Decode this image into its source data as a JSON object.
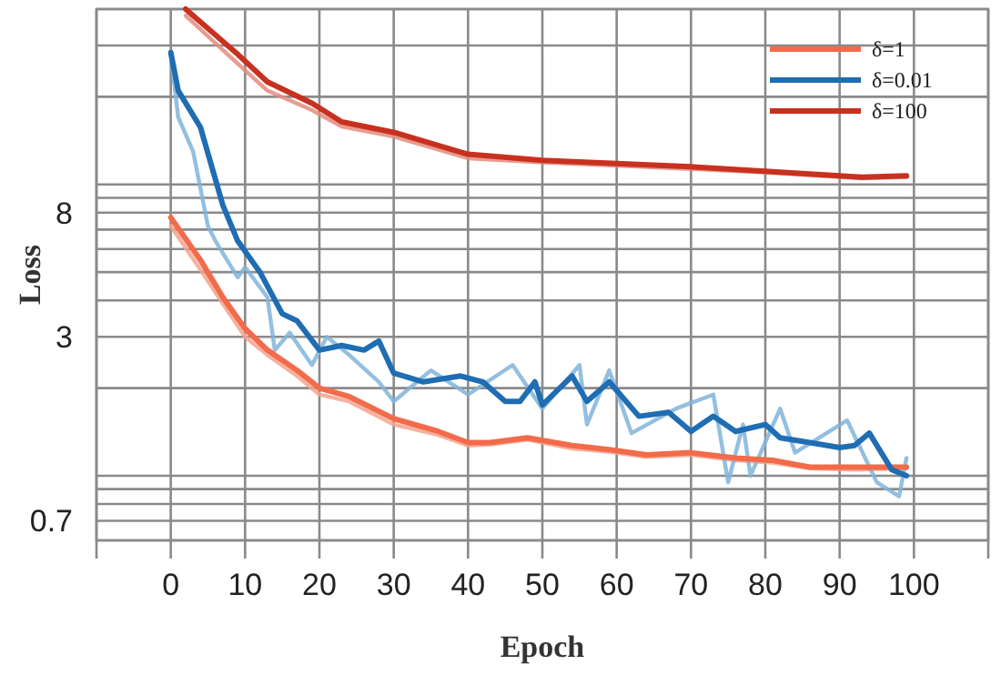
{
  "chart_data": {
    "type": "line",
    "xlabel": "Epoch",
    "ylabel": "Loss",
    "log": "y",
    "grid": true,
    "legend": "top right",
    "line_style": "solid",
    "marker": "none",
    "xlim": [
      -10,
      110
    ],
    "xticks": [
      {
        "value": -10,
        "label": null
      },
      0,
      10,
      20,
      30,
      40,
      50,
      60,
      70,
      80,
      90,
      100,
      {
        "value": 110,
        "label": null
      }
    ],
    "ylim": [
      0.6,
      40
    ],
    "yticks": [
      {
        "value": 0.6,
        "label": null
      },
      0.7,
      {
        "value": 0.8,
        "label": null
      },
      {
        "value": 0.9,
        "label": null
      },
      {
        "value": 1,
        "label": null
      },
      {
        "value": 2,
        "label": null
      },
      3,
      {
        "value": 4,
        "label": null
      },
      {
        "value": 5,
        "label": null
      },
      {
        "value": 6,
        "label": null
      },
      {
        "value": 7,
        "label": null
      },
      8,
      {
        "value": 9,
        "label": null
      },
      {
        "value": 10,
        "label": null
      },
      {
        "value": 20,
        "label": null
      },
      {
        "value": 30,
        "label": null
      },
      {
        "value": 40,
        "label": null
      }
    ],
    "series": [
      {
        "color": "#f4a38e",
        "x": [
          0,
          4,
          7,
          10,
          13,
          17,
          20,
          24,
          30,
          36,
          40,
          43,
          48,
          54,
          59,
          64,
          70,
          76,
          81,
          86,
          92,
          99
        ],
        "values": [
          7.2,
          5.1,
          3.9,
          3.0,
          2.6,
          2.2,
          1.9,
          1.8,
          1.5,
          1.38,
          1.27,
          1.28,
          1.33,
          1.24,
          1.21,
          1.16,
          1.18,
          1.13,
          1.11,
          1.06,
          1.05,
          1.06
        ]
      },
      {
        "color": "#80b4da",
        "x": [
          0,
          1,
          3,
          5,
          6,
          9,
          10,
          13,
          14,
          16,
          19,
          21,
          24,
          28,
          30,
          35,
          40,
          46,
          50,
          55,
          56,
          59,
          62,
          68,
          73,
          75,
          77,
          78,
          82,
          84,
          91,
          95,
          98,
          99
        ],
        "values": [
          28,
          17,
          13,
          7.2,
          6.4,
          4.8,
          5.2,
          4.1,
          2.7,
          3.1,
          2.4,
          3.0,
          2.6,
          2.1,
          1.8,
          2.3,
          1.9,
          2.4,
          1.7,
          2.4,
          1.5,
          2.3,
          1.4,
          1.7,
          1.9,
          0.95,
          1.5,
          1.0,
          1.7,
          1.2,
          1.55,
          0.95,
          0.85,
          1.15
        ]
      },
      {
        "color": "#e38c7c",
        "x": [
          2,
          9,
          13,
          19,
          23,
          30,
          40,
          50,
          60,
          70,
          80,
          90,
          93,
          99
        ],
        "values": [
          38,
          26,
          21,
          18,
          15.8,
          14.6,
          12.3,
          11.9,
          11.6,
          11.3,
          11.0,
          10.6,
          10.5,
          10.6
        ]
      },
      {
        "name": "δ=1",
        "color": "#f26b4a",
        "x": [
          0,
          4,
          7,
          10,
          13,
          17,
          20,
          24,
          30,
          36,
          40,
          43,
          48,
          54,
          59,
          64,
          70,
          76,
          81,
          86,
          92,
          99
        ],
        "values": [
          7.7,
          5.5,
          4.1,
          3.2,
          2.7,
          2.3,
          2.0,
          1.87,
          1.57,
          1.42,
          1.3,
          1.3,
          1.35,
          1.27,
          1.23,
          1.18,
          1.2,
          1.15,
          1.13,
          1.07,
          1.07,
          1.07
        ]
      },
      {
        "name": "δ=0.01",
        "color": "#1f6db3",
        "x": [
          0,
          1,
          4,
          7,
          9,
          12,
          15,
          17,
          20,
          23,
          26,
          28,
          30,
          34,
          39,
          42,
          45,
          47,
          49,
          50,
          54,
          56,
          59,
          63,
          67,
          70,
          73,
          76,
          80,
          82,
          86,
          90,
          92,
          94,
          97,
          99
        ],
        "values": [
          28.4,
          21,
          15.7,
          8.5,
          6.4,
          5.0,
          3.6,
          3.4,
          2.7,
          2.8,
          2.7,
          2.9,
          2.25,
          2.1,
          2.2,
          2.1,
          1.8,
          1.8,
          2.1,
          1.75,
          2.2,
          1.8,
          2.1,
          1.6,
          1.65,
          1.42,
          1.6,
          1.42,
          1.5,
          1.35,
          1.3,
          1.25,
          1.27,
          1.4,
          1.05,
          1.0
        ]
      },
      {
        "name": "δ=100",
        "color": "#c8311f",
        "x": [
          2,
          9,
          13,
          19,
          23,
          30,
          40,
          50,
          60,
          70,
          80,
          90,
          93,
          99
        ],
        "values": [
          40,
          28,
          22.5,
          19,
          16.4,
          15.1,
          12.7,
          12.1,
          11.8,
          11.5,
          11.1,
          10.7,
          10.6,
          10.7
        ]
      }
    ]
  }
}
